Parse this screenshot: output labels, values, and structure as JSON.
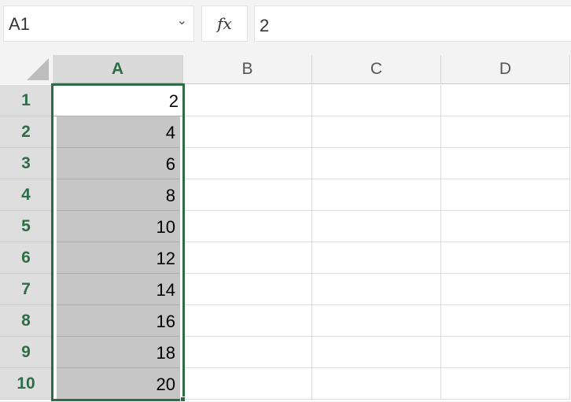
{
  "formula_bar": {
    "name_box": "A1",
    "fx_label": "fx",
    "formula": "2"
  },
  "columns": [
    "A",
    "B",
    "C",
    "D"
  ],
  "rows": [
    "1",
    "2",
    "3",
    "4",
    "5",
    "6",
    "7",
    "8",
    "9",
    "10"
  ],
  "column_a_values": [
    "2",
    "4",
    "6",
    "8",
    "10",
    "12",
    "14",
    "16",
    "18",
    "20"
  ],
  "selection": {
    "range": "A1:A10",
    "accent_color": "#2f6b45"
  }
}
